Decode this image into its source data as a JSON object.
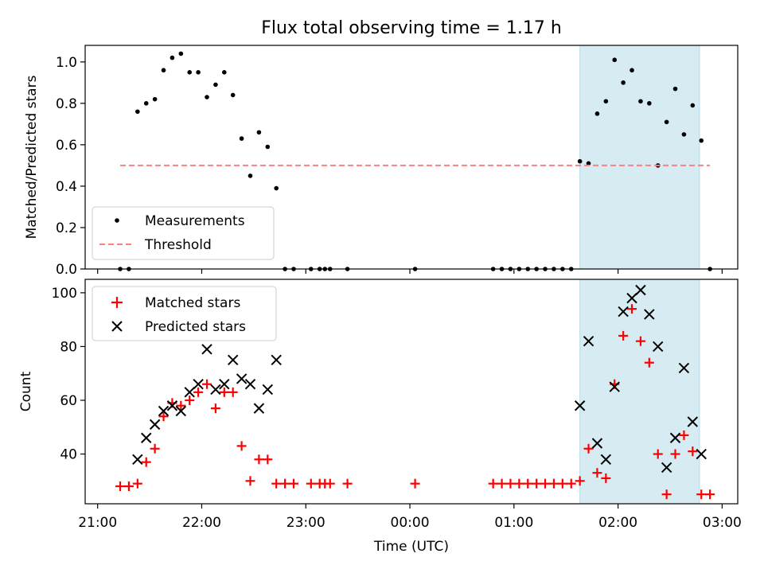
{
  "title": "Flux total observing time = 1.17 h",
  "chart_data": [
    {
      "type": "scatter",
      "ylabel": "Matched/Predicted stars",
      "xlabel": "",
      "xlim": [
        "21:00",
        "03:00"
      ],
      "ylim": [
        0,
        1.08
      ],
      "yticks": [
        0.0,
        0.2,
        0.4,
        0.6,
        0.8,
        1.0
      ],
      "ytick_labels": [
        "0.0",
        "0.2",
        "0.4",
        "0.6",
        "0.8",
        "1.0"
      ],
      "shaded_span": {
        "start": "01:38",
        "end": "02:47",
        "color": "#add8e6"
      },
      "legend": {
        "position": "lower-left",
        "entries": [
          "Measurements",
          "Threshold"
        ]
      },
      "series": [
        {
          "name": "Measurements",
          "marker": "dot",
          "color": "#000000",
          "points": [
            [
              "21:13",
              0.0
            ],
            [
              "21:18",
              0.0
            ],
            [
              "21:23",
              0.76
            ],
            [
              "21:28",
              0.8
            ],
            [
              "21:33",
              0.82
            ],
            [
              "21:38",
              0.96
            ],
            [
              "21:43",
              1.02
            ],
            [
              "21:48",
              1.04
            ],
            [
              "21:53",
              0.95
            ],
            [
              "21:58",
              0.95
            ],
            [
              "22:03",
              0.83
            ],
            [
              "22:08",
              0.89
            ],
            [
              "22:13",
              0.95
            ],
            [
              "22:18",
              0.84
            ],
            [
              "22:23",
              0.63
            ],
            [
              "22:28",
              0.45
            ],
            [
              "22:33",
              0.66
            ],
            [
              "22:38",
              0.59
            ],
            [
              "22:43",
              0.39
            ],
            [
              "22:48",
              0.0
            ],
            [
              "22:53",
              0.0
            ],
            [
              "23:03",
              0.0
            ],
            [
              "23:08",
              0.0
            ],
            [
              "23:11",
              0.0
            ],
            [
              "23:14",
              0.0
            ],
            [
              "23:24",
              0.0
            ],
            [
              "00:03",
              0.0
            ],
            [
              "00:48",
              0.0
            ],
            [
              "00:53",
              0.0
            ],
            [
              "00:58",
              0.0
            ],
            [
              "01:03",
              0.0
            ],
            [
              "01:08",
              0.0
            ],
            [
              "01:13",
              0.0
            ],
            [
              "01:18",
              0.0
            ],
            [
              "01:23",
              0.0
            ],
            [
              "01:28",
              0.0
            ],
            [
              "01:33",
              0.0
            ],
            [
              "01:38",
              0.52
            ],
            [
              "01:43",
              0.51
            ],
            [
              "01:48",
              0.75
            ],
            [
              "01:53",
              0.81
            ],
            [
              "01:58",
              1.01
            ],
            [
              "02:03",
              0.9
            ],
            [
              "02:08",
              0.96
            ],
            [
              "02:13",
              0.81
            ],
            [
              "02:18",
              0.8
            ],
            [
              "02:23",
              0.5
            ],
            [
              "02:28",
              0.71
            ],
            [
              "02:33",
              0.87
            ],
            [
              "02:38",
              0.65
            ],
            [
              "02:43",
              0.79
            ],
            [
              "02:48",
              0.62
            ],
            [
              "02:53",
              0.0
            ]
          ]
        },
        {
          "name": "Threshold",
          "marker": "dashed-line",
          "color": "#ff7f7f",
          "points": [
            [
              "21:13",
              0.5
            ],
            [
              "02:53",
              0.5
            ]
          ]
        }
      ]
    },
    {
      "type": "scatter",
      "ylabel": "Count",
      "xlabel": "Time (UTC)",
      "xlim": [
        "21:00",
        "03:00"
      ],
      "ylim": [
        21.5,
        105
      ],
      "yticks": [
        40,
        60,
        80,
        100
      ],
      "ytick_labels": [
        "40",
        "60",
        "80",
        "100"
      ],
      "xticks": [
        "21:00",
        "22:00",
        "23:00",
        "00:00",
        "01:00",
        "02:00",
        "03:00"
      ],
      "shaded_span": {
        "start": "01:38",
        "end": "02:47",
        "color": "#add8e6"
      },
      "legend": {
        "position": "upper-left",
        "entries": [
          "Matched stars",
          "Predicted stars"
        ]
      },
      "series": [
        {
          "name": "Matched stars",
          "marker": "plus",
          "color": "#ff0000",
          "points": [
            [
              "21:13",
              28
            ],
            [
              "21:18",
              28
            ],
            [
              "21:23",
              29
            ],
            [
              "21:28",
              37
            ],
            [
              "21:33",
              42
            ],
            [
              "21:38",
              54
            ],
            [
              "21:43",
              59
            ],
            [
              "21:48",
              58
            ],
            [
              "21:53",
              60
            ],
            [
              "21:58",
              63
            ],
            [
              "22:03",
              66
            ],
            [
              "22:08",
              57
            ],
            [
              "22:13",
              63
            ],
            [
              "22:18",
              63
            ],
            [
              "22:23",
              43
            ],
            [
              "22:28",
              30
            ],
            [
              "22:33",
              38
            ],
            [
              "22:38",
              38
            ],
            [
              "22:43",
              29
            ],
            [
              "22:48",
              29
            ],
            [
              "22:53",
              29
            ],
            [
              "23:03",
              29
            ],
            [
              "23:08",
              29
            ],
            [
              "23:11",
              29
            ],
            [
              "23:14",
              29
            ],
            [
              "23:24",
              29
            ],
            [
              "00:03",
              29
            ],
            [
              "00:48",
              29
            ],
            [
              "00:53",
              29
            ],
            [
              "00:58",
              29
            ],
            [
              "01:03",
              29
            ],
            [
              "01:08",
              29
            ],
            [
              "01:13",
              29
            ],
            [
              "01:18",
              29
            ],
            [
              "01:23",
              29
            ],
            [
              "01:28",
              29
            ],
            [
              "01:33",
              29
            ],
            [
              "01:38",
              30
            ],
            [
              "01:43",
              42
            ],
            [
              "01:48",
              33
            ],
            [
              "01:53",
              31
            ],
            [
              "01:58",
              66
            ],
            [
              "02:03",
              84
            ],
            [
              "02:08",
              94
            ],
            [
              "02:13",
              82
            ],
            [
              "02:18",
              74
            ],
            [
              "02:23",
              40
            ],
            [
              "02:28",
              25
            ],
            [
              "02:33",
              40
            ],
            [
              "02:38",
              47
            ],
            [
              "02:43",
              41
            ],
            [
              "02:48",
              25
            ],
            [
              "02:53",
              25
            ]
          ]
        },
        {
          "name": "Predicted stars",
          "marker": "x",
          "color": "#000000",
          "points": [
            [
              "21:23",
              38
            ],
            [
              "21:28",
              46
            ],
            [
              "21:33",
              51
            ],
            [
              "21:38",
              56
            ],
            [
              "21:43",
              58
            ],
            [
              "21:48",
              56
            ],
            [
              "21:53",
              63
            ],
            [
              "21:58",
              66
            ],
            [
              "22:03",
              79
            ],
            [
              "22:08",
              64
            ],
            [
              "22:13",
              66
            ],
            [
              "22:18",
              75
            ],
            [
              "22:23",
              68
            ],
            [
              "22:28",
              66
            ],
            [
              "22:33",
              57
            ],
            [
              "22:38",
              64
            ],
            [
              "22:43",
              75
            ],
            [
              "01:38",
              58
            ],
            [
              "01:43",
              82
            ],
            [
              "01:48",
              44
            ],
            [
              "01:53",
              38
            ],
            [
              "01:58",
              65
            ],
            [
              "02:03",
              93
            ],
            [
              "02:08",
              98
            ],
            [
              "02:13",
              101
            ],
            [
              "02:18",
              92
            ],
            [
              "02:23",
              80
            ],
            [
              "02:28",
              35
            ],
            [
              "02:33",
              46
            ],
            [
              "02:38",
              72
            ],
            [
              "02:43",
              52
            ],
            [
              "02:48",
              40
            ]
          ]
        }
      ]
    }
  ]
}
